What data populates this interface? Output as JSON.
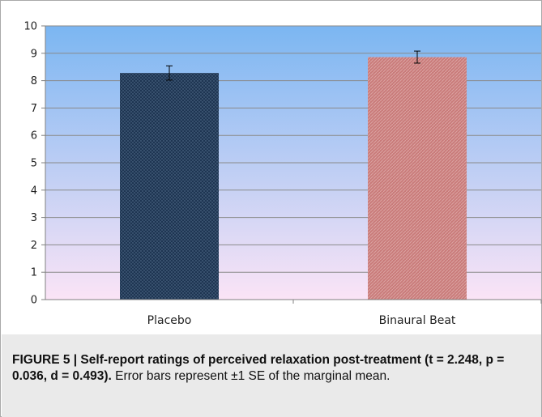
{
  "chart_data": {
    "type": "bar",
    "categories": [
      "Placebo",
      "Binaural Beat"
    ],
    "values": [
      8.28,
      8.86
    ],
    "error": [
      0.26,
      0.22
    ],
    "ylim": [
      0,
      10
    ],
    "yticks": [
      "0",
      "1",
      "2",
      "3",
      "4",
      "5",
      "6",
      "7",
      "8",
      "9",
      "10"
    ],
    "grid": true,
    "bar_colors": [
      "#1e3552",
      "#c97b7a"
    ],
    "background_gradient": [
      "#7bb6f2",
      "#fbe4f6"
    ],
    "title": "",
    "xlabel": "",
    "ylabel": ""
  },
  "caption": {
    "label": "FIGURE 5 | Self-report ratings of perceived relaxation post-treatment",
    "stats": "(t = 2.248, p = 0.036, d = 0.493).",
    "text": " Error bars represent ±1 SE of the marginal mean."
  }
}
